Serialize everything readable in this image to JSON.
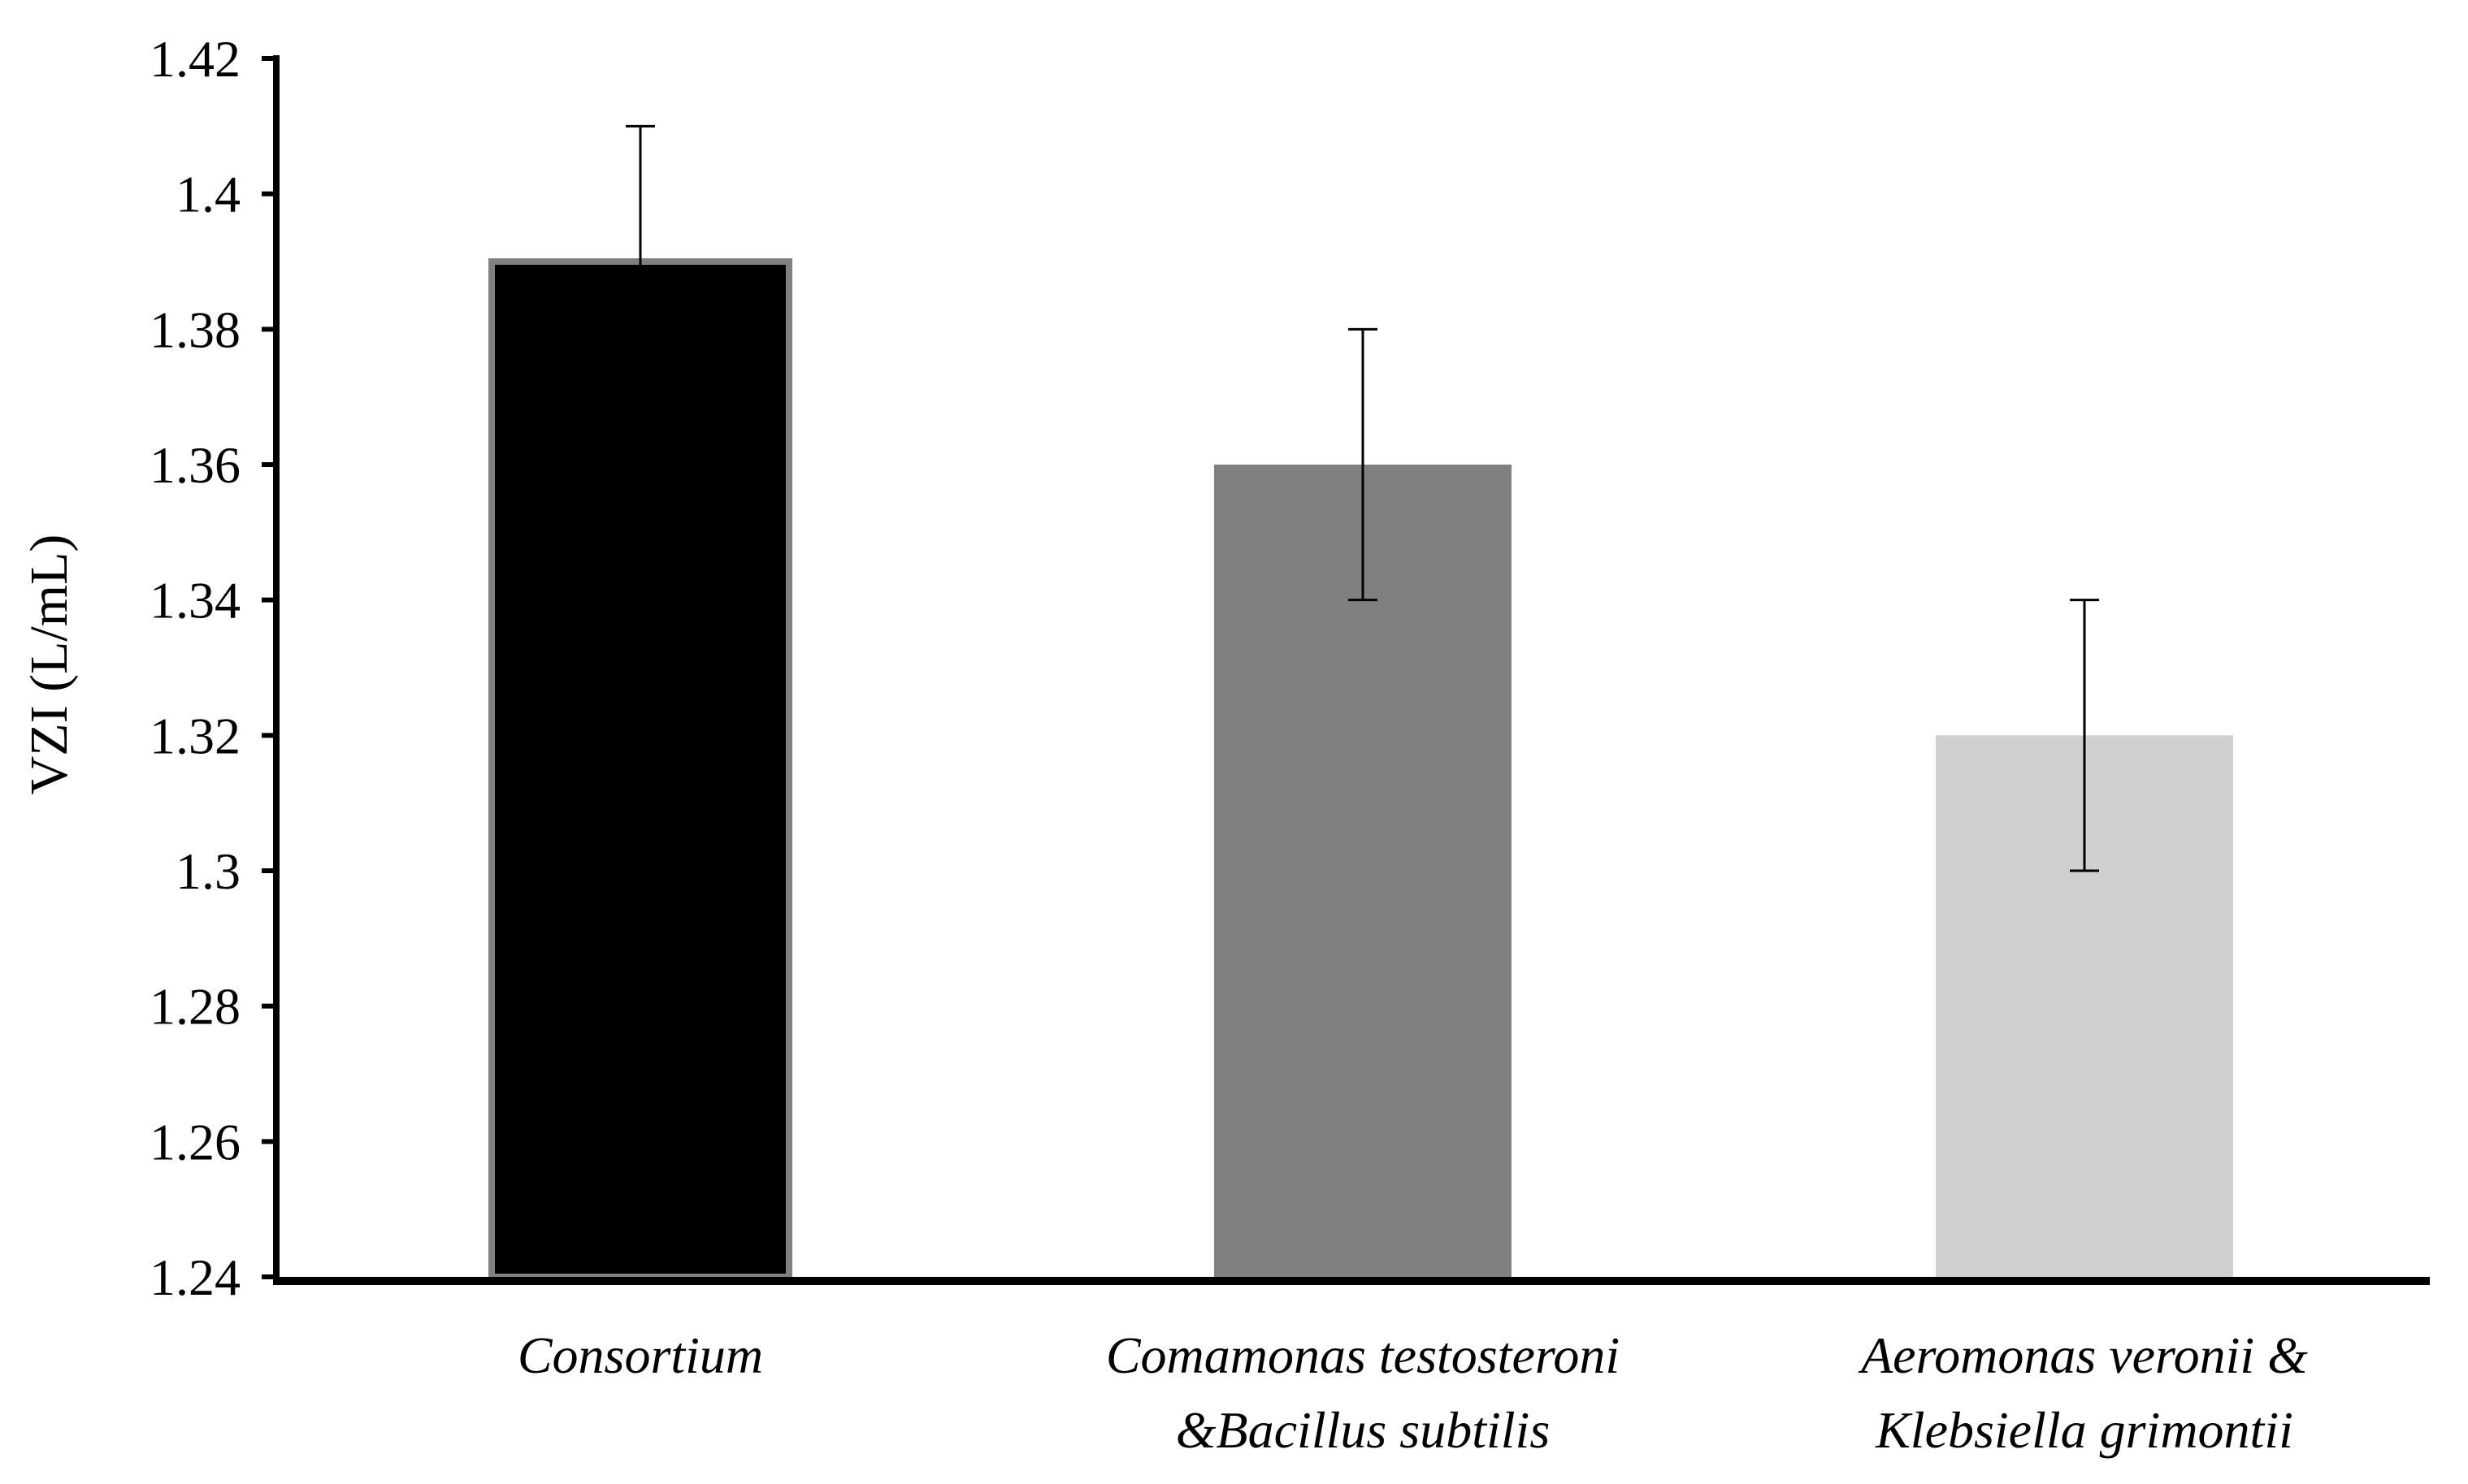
{
  "chart_data": {
    "type": "bar",
    "title": "",
    "xlabel": "",
    "ylabel": "VZI (L/mL)",
    "ylim": [
      1.24,
      1.42
    ],
    "yticks": [
      "1.24",
      "1.26",
      "1.28",
      "1.3",
      "1.32",
      "1.34",
      "1.36",
      "1.38",
      "1.4",
      "1.42"
    ],
    "categories": [
      [
        "Consortium"
      ],
      [
        "Comamonas testosteroni",
        "&Bacillus subtilis"
      ],
      [
        "Aeromonas veronii &",
        "Klebsiella grimontii"
      ]
    ],
    "values": [
      1.39,
      1.36,
      1.32
    ],
    "errors": [
      0.02,
      0.02,
      0.02
    ],
    "colors": [
      "#000000",
      "#808080",
      "#d0d0d0"
    ],
    "grid": false,
    "legend": "none"
  }
}
